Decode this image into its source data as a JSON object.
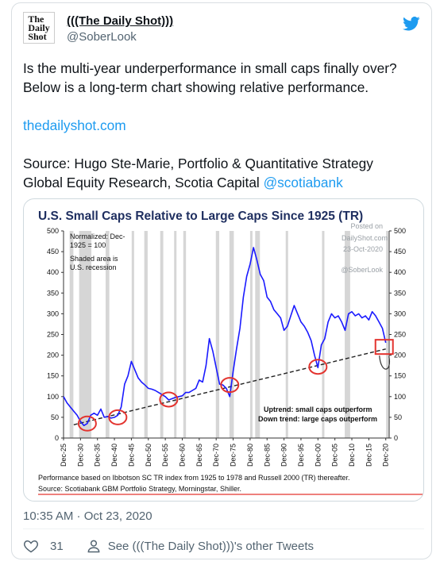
{
  "tweet": {
    "display_name": "(((The Daily Shot)))",
    "handle": "@SoberLook",
    "avatar_lines": [
      "The",
      "Daily",
      "Shot"
    ],
    "text_lines": [
      "Is the multi-year underperformance in small caps finally over?\nBelow is a long-term chart showing relative performance.",
      "thedailyshot.com",
      "Source: Hugo Ste-Marie, Portfolio & Quantitative Strategy\nGlobal Equity Research, Scotia Capital "
    ],
    "mention": "@scotiabank",
    "timestamp": "10:35 AM · Oct 23, 2020",
    "likes": "31",
    "see_more": "See (((The Daily Shot)))'s other Tweets"
  },
  "chart_data": {
    "type": "line",
    "title": "U.S. Small Caps Relative to Large Caps Since 1925 (TR)",
    "note1": "Normalized: Dec-1925 = 100",
    "note2": "Shaded area is U.S. recession",
    "watermark": [
      "Posted on",
      "DailyShot.com",
      "23-Oct-2020",
      "@SoberLook"
    ],
    "legend_up": "Uptrend: small caps outperform",
    "legend_down": "Down trend: large caps outperform",
    "footer1": "Performance based on Ibbotson SC TR index from 1925 to 1978 and Russell 2000 (TR) thereafter.",
    "footer2": "Source: Scotiabank GBM Portfolio Strategy, Morningstar, Shiller.",
    "ylim": [
      0,
      500
    ],
    "yticks": [
      0,
      50,
      100,
      150,
      200,
      250,
      300,
      350,
      400,
      450,
      500
    ],
    "xlim": [
      1925,
      2021
    ],
    "xticks": [
      "Dec-25",
      "Dec-30",
      "Dec-35",
      "Dec-40",
      "Dec-45",
      "Dec-50",
      "Dec-55",
      "Dec-60",
      "Dec-65",
      "Dec-70",
      "Dec-75",
      "Dec-80",
      "Dec-85",
      "Dec-90",
      "Dec-95",
      "Dec-00",
      "Dec-05",
      "Dec-10",
      "Dec-15",
      "Dec-20"
    ],
    "series": [
      {
        "color": "#1a1aff",
        "x": [
          1925,
          1926,
          1927,
          1928,
          1929,
          1930,
          1931,
          1932,
          1933,
          1934,
          1935,
          1936,
          1937,
          1938,
          1939,
          1940,
          1941,
          1942,
          1943,
          1944,
          1945,
          1946,
          1947,
          1948,
          1949,
          1950,
          1951,
          1952,
          1953,
          1954,
          1955,
          1956,
          1957,
          1958,
          1959,
          1960,
          1961,
          1962,
          1963,
          1964,
          1965,
          1966,
          1967,
          1968,
          1969,
          1970,
          1971,
          1972,
          1973,
          1974,
          1975,
          1976,
          1977,
          1978,
          1979,
          1980,
          1981,
          1982,
          1983,
          1984,
          1985,
          1986,
          1987,
          1988,
          1989,
          1990,
          1991,
          1992,
          1993,
          1994,
          1995,
          1996,
          1997,
          1998,
          1999,
          2000,
          2001,
          2002,
          2003,
          2004,
          2005,
          2006,
          2007,
          2008,
          2009,
          2010,
          2011,
          2012,
          2013,
          2014,
          2015,
          2016,
          2017,
          2018,
          2019,
          2020
        ],
        "y": [
          100,
          85,
          75,
          65,
          55,
          40,
          30,
          35,
          55,
          60,
          55,
          70,
          50,
          52,
          48,
          50,
          55,
          75,
          130,
          150,
          185,
          165,
          145,
          135,
          128,
          120,
          118,
          115,
          110,
          105,
          100,
          92,
          95,
          98,
          100,
          102,
          110,
          110,
          115,
          120,
          140,
          135,
          175,
          240,
          210,
          170,
          130,
          128,
          120,
          100,
          160,
          215,
          265,
          340,
          390,
          420,
          460,
          430,
          395,
          380,
          340,
          330,
          310,
          300,
          290,
          260,
          270,
          295,
          320,
          300,
          280,
          270,
          255,
          235,
          200,
          170,
          225,
          240,
          280,
          300,
          290,
          295,
          280,
          260,
          300,
          305,
          295,
          300,
          290,
          295,
          285,
          305,
          295,
          280,
          265,
          230
        ]
      }
    ],
    "trend_line": {
      "x": [
        1928,
        2020
      ],
      "y": [
        32,
        215
      ]
    },
    "recessions": [
      [
        1926.8,
        1927.9
      ],
      [
        1929.6,
        1933.2
      ],
      [
        1937.4,
        1938.5
      ],
      [
        1945.1,
        1945.8
      ],
      [
        1948.8,
        1949.8
      ],
      [
        1953.5,
        1954.4
      ],
      [
        1957.6,
        1958.3
      ],
      [
        1960.3,
        1961.1
      ],
      [
        1969.9,
        1970.9
      ],
      [
        1973.9,
        1975.2
      ],
      [
        1980.0,
        1980.5
      ],
      [
        1981.5,
        1982.9
      ],
      [
        1990.5,
        1991.2
      ],
      [
        2001.2,
        2001.9
      ],
      [
        2007.9,
        2009.5
      ],
      [
        2020.1,
        2020.5
      ]
    ],
    "circles": [
      [
        1932,
        35
      ],
      [
        1941,
        50
      ],
      [
        1956,
        93
      ],
      [
        1974,
        128
      ],
      [
        2000,
        172
      ]
    ],
    "box": [
      2020,
      220
    ]
  }
}
